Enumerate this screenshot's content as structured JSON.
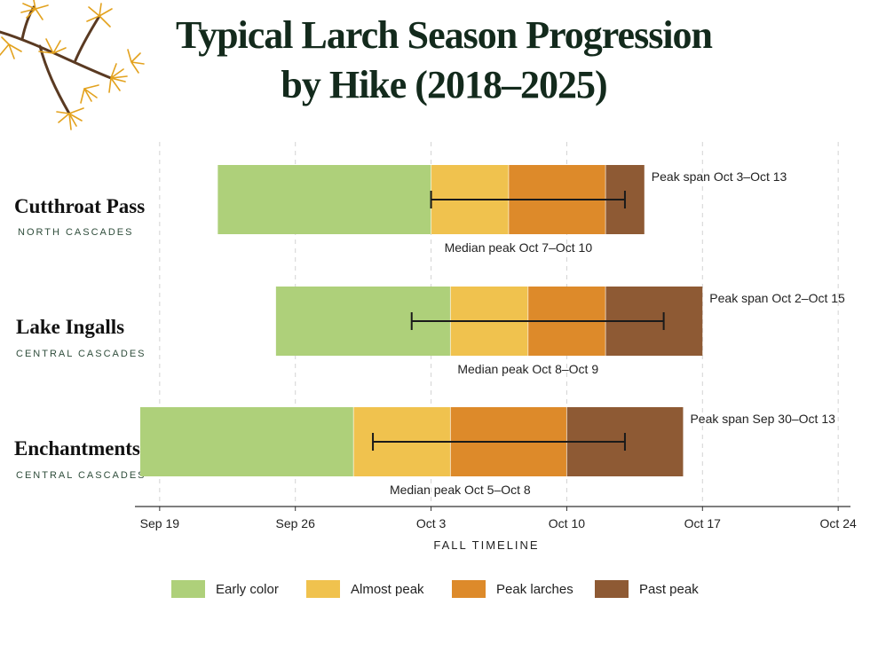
{
  "title_line1": "Typical Larch Season Progression",
  "title_line2": "by Hike (2018–2025)",
  "categories": [
    {
      "name": "Cutthroat Pass",
      "region": "NORTH CASCADES"
    },
    {
      "name": "Lake Ingalls",
      "region": "CENTRAL CASCADES"
    },
    {
      "name": "Enchantments",
      "region": "CENTRAL CASCADES"
    }
  ],
  "legend": [
    {
      "label": "Early color",
      "color": "#aed07a"
    },
    {
      "label": "Almost peak",
      "color": "#f0c24e"
    },
    {
      "label": "Peak larches",
      "color": "#dd8a2a"
    },
    {
      "label": "Past peak",
      "color": "#8e5a34"
    }
  ],
  "chart_data": {
    "type": "bar",
    "subtype": "stacked-horizontal-timeline",
    "title": "Typical Larch Season Progression by Hike (2018–2025)",
    "xlabel": "FALL TIMELINE",
    "x_start": "2024-09-19",
    "xlim": [
      "2024-09-18",
      "2024-09-25"
    ],
    "xlim_full": [
      "2024-09-18",
      "2024-10-25"
    ],
    "xticks": [
      {
        "date": "2024-09-19",
        "label": "Sep 19"
      },
      {
        "date": "2024-09-26",
        "label": "Sep 26"
      },
      {
        "date": "2024-10-03",
        "label": "Oct 3"
      },
      {
        "date": "2024-10-10",
        "label": "Oct 10"
      },
      {
        "date": "2024-10-17",
        "label": "Oct 17"
      },
      {
        "date": "2024-10-24",
        "label": "Oct 24"
      }
    ],
    "grid": true,
    "legend_position": "bottom",
    "series_names": [
      "Early color",
      "Almost peak",
      "Peak larches",
      "Past peak"
    ],
    "bars": [
      {
        "category": "Cutthroat Pass",
        "segments": [
          {
            "series": "Early color",
            "start": "2024-09-22",
            "end": "2024-10-03"
          },
          {
            "series": "Almost peak",
            "start": "2024-10-03",
            "end": "2024-10-07"
          },
          {
            "series": "Peak larches",
            "start": "2024-10-07",
            "end": "2024-10-12"
          },
          {
            "series": "Past peak",
            "start": "2024-10-12",
            "end": "2024-10-14"
          }
        ],
        "peak_span": {
          "start": "2024-10-03",
          "end": "2024-10-13",
          "label": "Peak span Oct 3–Oct 13"
        },
        "median_peak_label": "Median peak Oct 7–Oct 10"
      },
      {
        "category": "Lake Ingalls",
        "segments": [
          {
            "series": "Early color",
            "start": "2024-09-25",
            "end": "2024-10-04"
          },
          {
            "series": "Almost peak",
            "start": "2024-10-04",
            "end": "2024-10-08"
          },
          {
            "series": "Peak larches",
            "start": "2024-10-08",
            "end": "2024-10-12"
          },
          {
            "series": "Past peak",
            "start": "2024-10-12",
            "end": "2024-10-17"
          }
        ],
        "peak_span": {
          "start": "2024-10-02",
          "end": "2024-10-15",
          "label": "Peak span Oct 2–Oct 15"
        },
        "median_peak_label": "Median peak Oct 8–Oct 9"
      },
      {
        "category": "Enchantments",
        "segments": [
          {
            "series": "Early color",
            "start": "2024-09-18",
            "end": "2024-09-29"
          },
          {
            "series": "Almost peak",
            "start": "2024-09-29",
            "end": "2024-10-04"
          },
          {
            "series": "Peak larches",
            "start": "2024-10-04",
            "end": "2024-10-10"
          },
          {
            "series": "Past peak",
            "start": "2024-10-10",
            "end": "2024-10-16"
          }
        ],
        "peak_span": {
          "start": "2024-09-30",
          "end": "2024-10-13",
          "label": "Peak span Sep 30–Oct 13"
        },
        "median_peak_label": "Median peak Oct 5–Oct 8"
      }
    ]
  }
}
